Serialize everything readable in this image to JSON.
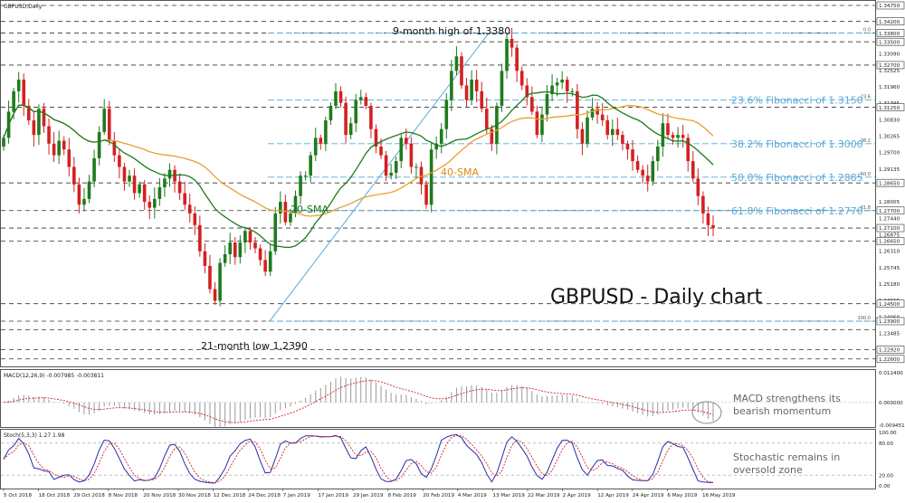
{
  "window": {
    "main_title": "GBPUSD,Daily",
    "macd_title": "MACD(12,26,9) -0.007985 -0.003811",
    "stoch_title": "Stoch(5,3,3) 1.27 1.98"
  },
  "annotations": {
    "main_label": "GBPUSD - Daily chart",
    "high_label": "9-month high of 1.3380",
    "low_label": "21-month low 1.2390",
    "sma20_label": "20-SMA",
    "sma40_label": "40-SMA",
    "macd_note_1": "MACD strengthens its",
    "macd_note_2": "bearish momentum",
    "stoch_note_1": "Stochastic remains in",
    "stoch_note_2": "oversold zone"
  },
  "colors": {
    "bull": "#1f7a1f",
    "bear": "#d42020",
    "sma20": "#1a7a1a",
    "sma40": "#e8a030",
    "fib": "#5aaad8",
    "stoch_main": "#2a2aaa",
    "stoch_signal": "#d42020",
    "macd_signal": "#d42020",
    "macd_hist": "#999999"
  },
  "chart_data": [
    {
      "type": "candlestick",
      "title": "GBPUSD,Daily",
      "y_axis_labels": [
        "1.34750",
        "1.34200",
        "1.33800",
        "1.33500",
        "1.33090",
        "1.32700",
        "1.32525",
        "1.31960",
        "1.31395",
        "1.31250",
        "1.30830",
        "1.30265",
        "1.29700",
        "1.29135",
        "1.28650",
        "1.28005",
        "1.27700",
        "1.27440",
        "1.26875",
        "1.27100",
        "1.26650",
        "1.26310",
        "1.25745",
        "1.25180",
        "1.24615",
        "1.24500",
        "1.24050",
        "1.23485",
        "1.23900",
        "1.22920",
        "1.22600"
      ],
      "ylim": [
        1.225,
        1.3475
      ],
      "horizontal_levels": [
        1.3475,
        1.342,
        1.338,
        1.335,
        1.327,
        1.3125,
        1.2865,
        1.277,
        1.271,
        1.2665,
        1.245,
        1.239,
        1.236,
        1.2292,
        1.226
      ],
      "fibonacci_levels": [
        {
          "price": 1.338,
          "tag": "0.0",
          "label": ""
        },
        {
          "price": 1.315,
          "tag": "23.6",
          "label": "23.6% Fibonacci of 1.3150"
        },
        {
          "price": 1.3,
          "tag": "38.2",
          "label": "38.2% Fibonacci of 1.3000"
        },
        {
          "price": 1.2885,
          "tag": "50.0",
          "label": "50.0% Fibonacci of 1.2885"
        },
        {
          "price": 1.277,
          "tag": "61.8",
          "label": "61.8% Fibonacci of 1.2770"
        },
        {
          "price": 1.239,
          "tag": "100.0",
          "label": ""
        }
      ],
      "x_tick_labels": [
        "5 Oct 2018",
        "18 Oct 2018",
        "29 Oct 2018",
        "8 Nov 2018",
        "20 Nov 2018",
        "30 Nov 2018",
        "12 Dec 2018",
        "24 Dec 2018",
        "7 Jan 2019",
        "17 Jan 2019",
        "29 Jan 2019",
        "8 Feb 2019",
        "20 Feb 2019",
        "4 Mar 2019",
        "13 Mar 2019",
        "22 Mar 2019",
        "2 Apr 2019",
        "12 Apr 2019",
        "24 Apr 2019",
        "6 May 2019",
        "16 May 2019"
      ],
      "ohlc_close_path": [
        1.302,
        1.311,
        1.318,
        1.322,
        1.313,
        1.308,
        1.303,
        1.312,
        1.306,
        1.3,
        1.296,
        1.301,
        1.298,
        1.292,
        1.286,
        1.279,
        1.281,
        1.287,
        1.295,
        1.304,
        1.312,
        1.301,
        1.296,
        1.292,
        1.287,
        1.289,
        1.283,
        1.286,
        1.28,
        1.278,
        1.281,
        1.285,
        1.288,
        1.291,
        1.287,
        1.283,
        1.279,
        1.276,
        1.272,
        1.263,
        1.258,
        1.25,
        1.246,
        1.259,
        1.262,
        1.266,
        1.261,
        1.266,
        1.27,
        1.266,
        1.264,
        1.26,
        1.256,
        1.263,
        1.276,
        1.28,
        1.273,
        1.276,
        1.282,
        1.289,
        1.289,
        1.296,
        1.302,
        1.3,
        1.308,
        1.313,
        1.318,
        1.314,
        1.303,
        1.307,
        1.315,
        1.316,
        1.313,
        1.305,
        1.299,
        1.296,
        1.289,
        1.29,
        1.294,
        1.302,
        1.3,
        1.292,
        1.292,
        1.286,
        1.279,
        1.298,
        1.3,
        1.305,
        1.315,
        1.325,
        1.33,
        1.32,
        1.315,
        1.322,
        1.318,
        1.312,
        1.305,
        1.3,
        1.313,
        1.325,
        1.336,
        1.333,
        1.325,
        1.32,
        1.316,
        1.311,
        1.303,
        1.31,
        1.317,
        1.32,
        1.321,
        1.322,
        1.318,
        1.318,
        1.305,
        1.3,
        1.309,
        1.312,
        1.31,
        1.308,
        1.303,
        1.305,
        1.303,
        1.3,
        1.298,
        1.294,
        1.291,
        1.289,
        1.287,
        1.294,
        1.299,
        1.307,
        1.303,
        1.302,
        1.303,
        1.302,
        1.294,
        1.288,
        1.282,
        1.276,
        1.272,
        1.271
      ],
      "series": [
        {
          "name": "20-SMA"
        },
        {
          "name": "40-SMA"
        }
      ]
    },
    {
      "type": "bar",
      "title": "MACD(12,26,9) -0.007985 -0.003811",
      "y_axis_labels": [
        "0.012400",
        "0.000000",
        "-0.009451"
      ],
      "ylim": [
        -0.0095,
        0.0124
      ]
    },
    {
      "type": "line",
      "title": "Stoch(5,3,3) 1.27 1.98",
      "y_axis_labels": [
        "100.00",
        "80.00",
        "20.00",
        "0.00"
      ],
      "ylim": [
        0,
        100
      ],
      "levels": [
        80,
        20
      ]
    }
  ]
}
